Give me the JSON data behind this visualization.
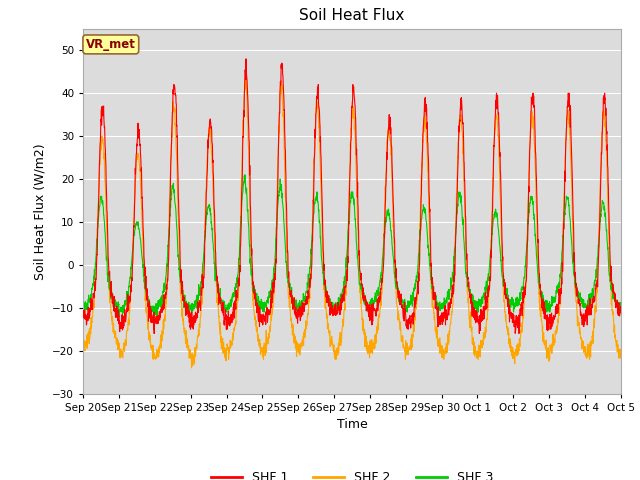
{
  "title": "Soil Heat Flux",
  "ylabel": "Soil Heat Flux (W/m2)",
  "xlabel": "Time",
  "ylim": [
    -30,
    55
  ],
  "yticks": [
    -30,
    -20,
    -10,
    0,
    10,
    20,
    30,
    40,
    50
  ],
  "colors": {
    "SHF 1": "#ff0000",
    "SHF 2": "#ffa500",
    "SHF 3": "#00cc00"
  },
  "legend_label": "VR_met",
  "bg_color": "#dcdcdc",
  "n_days": 15,
  "title_fontsize": 11,
  "label_fontsize": 9,
  "tick_fontsize": 7.5,
  "legend_fontsize": 9
}
